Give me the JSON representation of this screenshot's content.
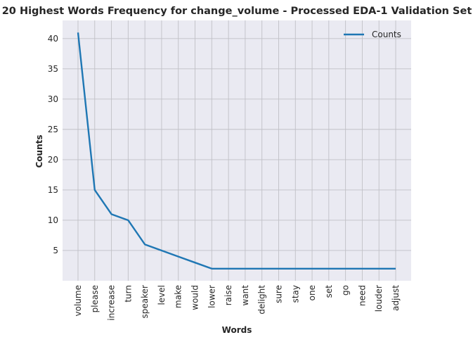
{
  "chart_data": {
    "type": "line",
    "title": "20 Highest Words Frequency for change_volume - Processed EDA-1 Validation Set",
    "xlabel": "Words",
    "ylabel": "Counts",
    "categories": [
      "volume",
      "please",
      "increase",
      "turn",
      "speaker",
      "level",
      "make",
      "would",
      "lower",
      "raise",
      "want",
      "delight",
      "sure",
      "stay",
      "one",
      "set",
      "go",
      "need",
      "louder",
      "adjust"
    ],
    "series": [
      {
        "name": "Counts",
        "values": [
          41,
          15,
          11,
          10,
          6,
          5,
          4,
          3,
          2,
          2,
          2,
          2,
          2,
          2,
          2,
          2,
          2,
          2,
          2,
          2
        ],
        "color": "#1f77b4"
      }
    ],
    "ylim": [
      0,
      43
    ],
    "yticks": [
      5,
      10,
      15,
      20,
      25,
      30,
      35,
      40
    ],
    "grid": true,
    "legend_position": "top-right",
    "background_color": "#eaeaf2",
    "grid_color": "#c0c0c6"
  }
}
